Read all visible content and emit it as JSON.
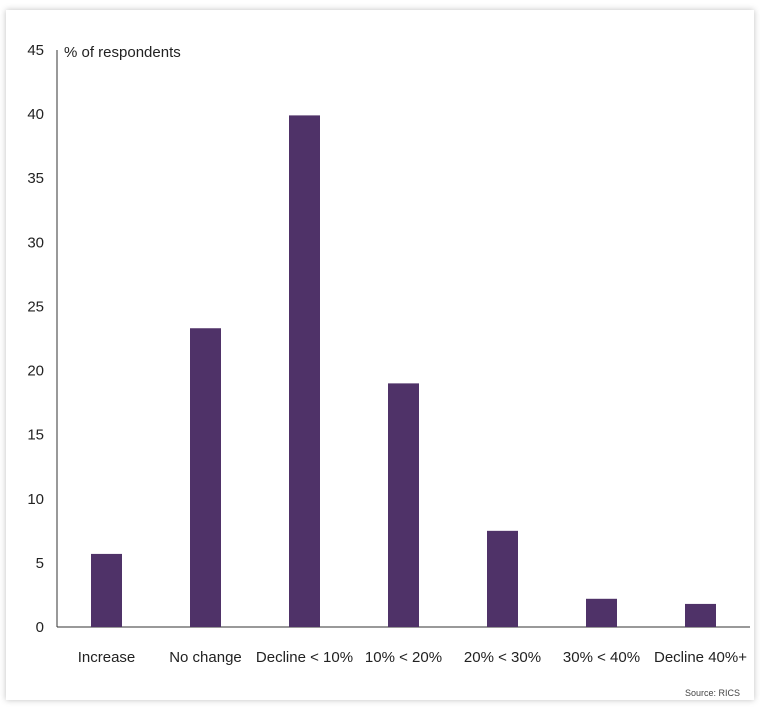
{
  "chart_data": {
    "type": "bar",
    "title": "",
    "xlabel": "",
    "ylabel": "% of respondents",
    "categories": [
      "Increase",
      "No change",
      "Decline < 10%",
      "10% < 20%",
      "20% < 30%",
      "30% < 40%",
      "Decline  40%+"
    ],
    "values": [
      5.7,
      23.3,
      39.9,
      19.0,
      7.5,
      2.2,
      1.8
    ],
    "ylim": [
      0,
      45
    ],
    "yticks": [
      0,
      5,
      10,
      15,
      20,
      25,
      30,
      35,
      40,
      45
    ],
    "grid": false,
    "bar_color": "#4f3268",
    "source": "Source: RICS"
  }
}
